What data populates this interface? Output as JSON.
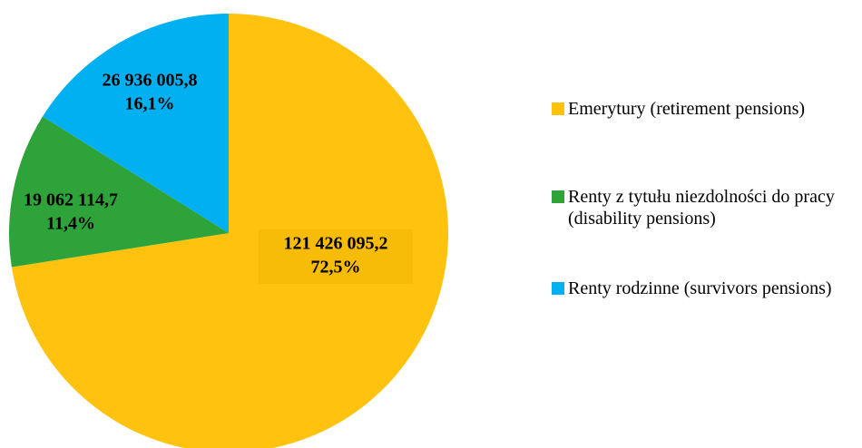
{
  "chart_data": {
    "type": "pie",
    "categories": [
      "Emerytury (retirement pensions)",
      "Renty z tytułu niezdolności do pracy (disability pensions)",
      "Renty rodzinne (survivors pensions)"
    ],
    "values": [
      121426095.2,
      19062114.7,
      26936005.8
    ],
    "value_labels": [
      "121 426 095,2",
      "19 062 114,7",
      "26 936 005,8"
    ],
    "percentages": [
      72.5,
      11.4,
      16.1
    ],
    "percentage_labels": [
      "72,5%",
      "11,4%",
      "16,1%"
    ],
    "colors": [
      "#FFC20E",
      "#2DA33A",
      "#00B0F0"
    ],
    "legend": "right"
  }
}
